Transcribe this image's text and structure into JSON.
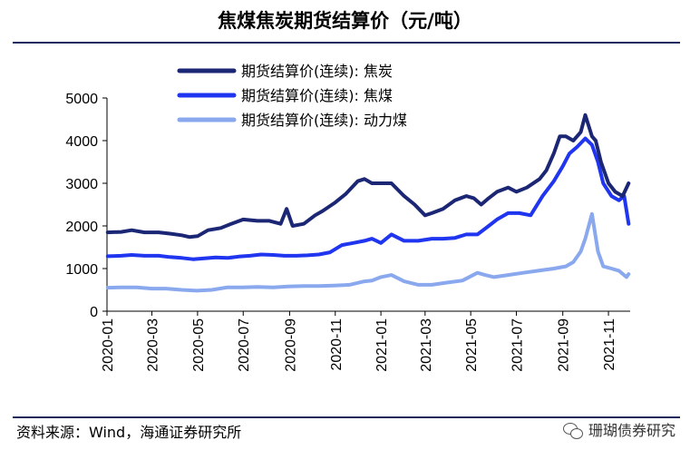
{
  "header": {
    "title": "焦煤焦炭期货结算价（元/吨）"
  },
  "footer": {
    "source": "资料来源：Wind，海通证券研究所",
    "watermark": "珊瑚债券研究"
  },
  "chart_data": {
    "type": "line",
    "title": "焦煤焦炭期货结算价（元/吨）",
    "xlabel": "",
    "ylabel": "",
    "ylim": [
      0,
      5000
    ],
    "yticks": [
      "0",
      "1000",
      "2000",
      "3000",
      "4000",
      "5000"
    ],
    "xlim": [
      "2020-01",
      "2021-12"
    ],
    "xticks": [
      "2020-01",
      "2020-03",
      "2020-05",
      "2020-07",
      "2020-09",
      "2020-11",
      "2021-01",
      "2021-03",
      "2021-05",
      "2021-07",
      "2021-09",
      "2021-11"
    ],
    "legend_position": "top-center",
    "grid": false,
    "series": [
      {
        "name": "期货结算价(连续): 焦炭",
        "color": "#1b2774",
        "x": [
          "2020-01-02",
          "2020-01-20",
          "2020-02-03",
          "2020-02-20",
          "2020-03-10",
          "2020-03-25",
          "2020-04-10",
          "2020-04-20",
          "2020-05-01",
          "2020-05-15",
          "2020-06-01",
          "2020-06-15",
          "2020-07-01",
          "2020-07-20",
          "2020-08-05",
          "2020-08-20",
          "2020-08-28",
          "2020-09-05",
          "2020-09-20",
          "2020-10-05",
          "2020-10-15",
          "2020-11-01",
          "2020-11-15",
          "2020-12-01",
          "2020-12-10",
          "2020-12-20",
          "2021-01-01",
          "2021-01-15",
          "2021-02-01",
          "2021-02-15",
          "2021-03-01",
          "2021-03-10",
          "2021-03-25",
          "2021-04-10",
          "2021-04-25",
          "2021-05-05",
          "2021-05-15",
          "2021-05-25",
          "2021-06-05",
          "2021-06-20",
          "2021-07-01",
          "2021-07-15",
          "2021-08-01",
          "2021-08-10",
          "2021-08-20",
          "2021-08-28",
          "2021-09-05",
          "2021-09-15",
          "2021-09-25",
          "2021-10-01",
          "2021-10-10",
          "2021-10-15",
          "2021-10-22",
          "2021-11-01",
          "2021-11-10",
          "2021-11-20",
          "2021-11-28"
        ],
        "values": [
          1850,
          1860,
          1900,
          1850,
          1850,
          1820,
          1780,
          1740,
          1760,
          1900,
          1950,
          2050,
          2150,
          2120,
          2120,
          2050,
          2400,
          2000,
          2050,
          2250,
          2350,
          2550,
          2750,
          3050,
          3100,
          3000,
          3000,
          3000,
          2700,
          2500,
          2250,
          2300,
          2400,
          2600,
          2700,
          2650,
          2500,
          2650,
          2800,
          2900,
          2800,
          2900,
          3100,
          3300,
          3700,
          4100,
          4100,
          4000,
          4200,
          4600,
          4100,
          4000,
          3500,
          3000,
          2800,
          2700,
          3000
        ]
      },
      {
        "name": "期货结算价(连续): 焦煤",
        "color": "#1f35f0",
        "x": [
          "2020-01-02",
          "2020-01-20",
          "2020-02-03",
          "2020-02-20",
          "2020-03-10",
          "2020-03-25",
          "2020-04-10",
          "2020-04-25",
          "2020-05-10",
          "2020-05-25",
          "2020-06-10",
          "2020-06-25",
          "2020-07-10",
          "2020-07-25",
          "2020-08-10",
          "2020-08-25",
          "2020-09-10",
          "2020-09-25",
          "2020-10-10",
          "2020-10-25",
          "2020-11-10",
          "2020-11-25",
          "2020-12-10",
          "2020-12-20",
          "2021-01-01",
          "2021-01-15",
          "2021-02-01",
          "2021-02-20",
          "2021-03-10",
          "2021-03-25",
          "2021-04-10",
          "2021-04-25",
          "2021-05-10",
          "2021-05-25",
          "2021-06-05",
          "2021-06-20",
          "2021-07-05",
          "2021-07-20",
          "2021-08-05",
          "2021-08-20",
          "2021-09-01",
          "2021-09-10",
          "2021-09-20",
          "2021-10-01",
          "2021-10-10",
          "2021-10-18",
          "2021-10-25",
          "2021-11-05",
          "2021-11-15",
          "2021-11-22",
          "2021-11-28"
        ],
        "values": [
          1290,
          1300,
          1320,
          1300,
          1300,
          1270,
          1250,
          1220,
          1240,
          1260,
          1250,
          1280,
          1300,
          1330,
          1320,
          1300,
          1300,
          1310,
          1330,
          1380,
          1550,
          1600,
          1650,
          1700,
          1600,
          1800,
          1650,
          1650,
          1700,
          1700,
          1720,
          1800,
          1800,
          2000,
          2150,
          2300,
          2300,
          2250,
          2700,
          3050,
          3400,
          3700,
          3850,
          4050,
          3900,
          3500,
          3000,
          2700,
          2600,
          2700,
          2050
        ]
      },
      {
        "name": "期货结算价(连续): 动力煤",
        "color": "#8aa8ee",
        "x": [
          "2020-01-02",
          "2020-01-20",
          "2020-02-10",
          "2020-03-01",
          "2020-03-20",
          "2020-04-10",
          "2020-04-30",
          "2020-05-20",
          "2020-06-10",
          "2020-06-30",
          "2020-07-20",
          "2020-08-10",
          "2020-08-30",
          "2020-09-20",
          "2020-10-10",
          "2020-10-30",
          "2020-11-20",
          "2020-12-10",
          "2020-12-20",
          "2021-01-01",
          "2021-01-15",
          "2021-02-01",
          "2021-02-20",
          "2021-03-10",
          "2021-03-30",
          "2021-04-20",
          "2021-05-10",
          "2021-05-20",
          "2021-06-01",
          "2021-06-20",
          "2021-07-10",
          "2021-07-30",
          "2021-08-20",
          "2021-09-05",
          "2021-09-15",
          "2021-09-25",
          "2021-10-01",
          "2021-10-10",
          "2021-10-18",
          "2021-10-25",
          "2021-11-05",
          "2021-11-15",
          "2021-11-25",
          "2021-11-28"
        ],
        "values": [
          550,
          560,
          560,
          530,
          530,
          500,
          480,
          500,
          560,
          560,
          570,
          560,
          580,
          590,
          590,
          600,
          620,
          700,
          720,
          800,
          850,
          700,
          620,
          620,
          670,
          720,
          900,
          850,
          800,
          850,
          900,
          950,
          1000,
          1050,
          1150,
          1400,
          1700,
          2280,
          1400,
          1050,
          1000,
          950,
          800,
          870
        ]
      }
    ]
  }
}
